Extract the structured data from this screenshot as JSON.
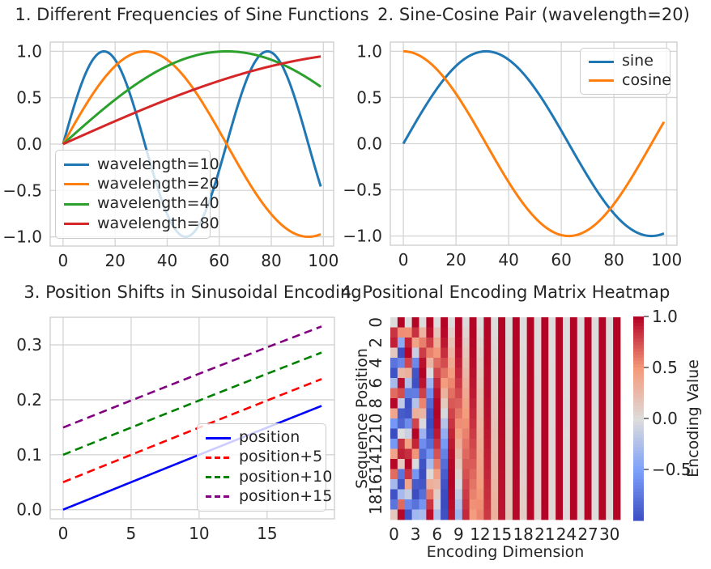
{
  "figure": {
    "background_color": "#ffffff",
    "text_color": "#262626",
    "grid_color": "#d4d4d4",
    "spine_color": "#cccccc"
  },
  "chart_data": [
    {
      "type": "line",
      "title": "1. Different Frequencies of Sine Functions",
      "x_range": [
        0,
        99
      ],
      "xlim": [
        -4.95,
        103.95
      ],
      "ylim": [
        -1.1,
        1.1
      ],
      "x_ticks": [
        0,
        20,
        40,
        60,
        80,
        100
      ],
      "x_tick_labels": [
        "0",
        "20",
        "40",
        "60",
        "80",
        "100"
      ],
      "y_ticks": [
        -1.0,
        -0.5,
        0.0,
        0.5,
        1.0
      ],
      "y_tick_labels": [
        "−1.0",
        "−0.5",
        "0.0",
        "0.5",
        "1.0"
      ],
      "grid": true,
      "legend_position": "lower left",
      "series": [
        {
          "label": "wavelength=10",
          "color": "#1f77b4",
          "linestyle": "solid",
          "formula": {
            "fn": "sin",
            "xshift": 0,
            "xscale": 10
          },
          "sample_x": [
            0,
            10,
            20,
            30,
            40,
            50,
            60,
            70,
            80,
            90,
            99
          ],
          "sample_y": [
            0.0,
            0.841,
            0.909,
            0.141,
            -0.757,
            -0.959,
            -0.279,
            0.657,
            0.989,
            0.412,
            -0.458
          ]
        },
        {
          "label": "wavelength=20",
          "color": "#ff7f0e",
          "linestyle": "solid",
          "formula": {
            "fn": "sin",
            "xshift": 0,
            "xscale": 20
          },
          "sample_x": [
            0,
            10,
            20,
            30,
            40,
            50,
            60,
            70,
            80,
            90,
            99
          ],
          "sample_y": [
            0.0,
            0.479,
            0.841,
            0.997,
            0.909,
            0.599,
            0.141,
            -0.351,
            -0.757,
            -0.978,
            -0.972
          ]
        },
        {
          "label": "wavelength=40",
          "color": "#2ca02c",
          "linestyle": "solid",
          "formula": {
            "fn": "sin",
            "xshift": 0,
            "xscale": 40
          },
          "sample_x": [
            0,
            10,
            20,
            30,
            40,
            50,
            60,
            70,
            80,
            90,
            99
          ],
          "sample_y": [
            0.0,
            0.247,
            0.479,
            0.682,
            0.841,
            0.949,
            0.997,
            0.984,
            0.909,
            0.778,
            0.618
          ]
        },
        {
          "label": "wavelength=80",
          "color": "#d62728",
          "linestyle": "solid",
          "formula": {
            "fn": "sin",
            "xshift": 0,
            "xscale": 80
          },
          "sample_x": [
            0,
            10,
            20,
            30,
            40,
            50,
            60,
            70,
            80,
            90,
            99
          ],
          "sample_y": [
            0.0,
            0.125,
            0.247,
            0.366,
            0.479,
            0.585,
            0.682,
            0.768,
            0.841,
            0.902,
            0.945
          ]
        }
      ]
    },
    {
      "type": "line",
      "title": "2. Sine-Cosine Pair (wavelength=20)",
      "x_range": [
        0,
        99
      ],
      "xlim": [
        -4.95,
        103.95
      ],
      "ylim": [
        -1.1,
        1.1
      ],
      "x_ticks": [
        0,
        20,
        40,
        60,
        80,
        100
      ],
      "x_tick_labels": [
        "0",
        "20",
        "40",
        "60",
        "80",
        "100"
      ],
      "y_ticks": [
        -1.0,
        -0.5,
        0.0,
        0.5,
        1.0
      ],
      "y_tick_labels": [
        "−1.0",
        "−0.5",
        "0.0",
        "0.5",
        "1.0"
      ],
      "grid": true,
      "legend_position": "upper right",
      "series": [
        {
          "label": "sine",
          "color": "#1f77b4",
          "linestyle": "solid",
          "formula": {
            "fn": "sin",
            "xshift": 0,
            "xscale": 20
          },
          "sample_x": [
            0,
            10,
            20,
            30,
            40,
            50,
            60,
            70,
            80,
            90,
            99
          ],
          "sample_y": [
            0.0,
            0.479,
            0.841,
            0.997,
            0.909,
            0.599,
            0.141,
            -0.351,
            -0.757,
            -0.978,
            -0.972
          ]
        },
        {
          "label": "cosine",
          "color": "#ff7f0e",
          "linestyle": "solid",
          "formula": {
            "fn": "cos",
            "xshift": 0,
            "xscale": 20
          },
          "sample_x": [
            0,
            10,
            20,
            30,
            40,
            50,
            60,
            70,
            80,
            90,
            99
          ],
          "sample_y": [
            1.0,
            0.878,
            0.54,
            0.071,
            -0.416,
            -0.801,
            -0.99,
            -0.936,
            -0.654,
            -0.211,
            0.236
          ]
        }
      ]
    },
    {
      "type": "line",
      "title": "3. Position Shifts in Sinusoidal Encoding",
      "x_range": [
        0,
        19
      ],
      "xlim": [
        -0.95,
        19.95
      ],
      "ylim": [
        -0.0167,
        0.3502
      ],
      "x_ticks": [
        0,
        5,
        10,
        15
      ],
      "x_tick_labels": [
        "0",
        "5",
        "10",
        "15"
      ],
      "y_ticks": [
        0.0,
        0.1,
        0.2,
        0.3
      ],
      "y_tick_labels": [
        "0.0",
        "0.1",
        "0.2",
        "0.3"
      ],
      "grid": true,
      "legend_position": "lower right",
      "series": [
        {
          "label": "position",
          "color": "#0000ff",
          "linestyle": "solid",
          "formula": {
            "fn": "sin",
            "xshift": 0,
            "xscale": 100
          },
          "sample_x": [
            0,
            5,
            10,
            15,
            19
          ],
          "sample_y": [
            0.0,
            0.05,
            0.0998,
            0.1494,
            0.1889
          ]
        },
        {
          "label": "position+5",
          "color": "#ff0000",
          "linestyle": "dashed",
          "formula": {
            "fn": "sin",
            "xshift": 5,
            "xscale": 100
          },
          "sample_x": [
            0,
            5,
            10,
            15,
            19
          ],
          "sample_y": [
            0.05,
            0.0998,
            0.1494,
            0.1987,
            0.2377
          ]
        },
        {
          "label": "position+10",
          "color": "#008000",
          "linestyle": "dashed",
          "formula": {
            "fn": "sin",
            "xshift": 10,
            "xscale": 100
          },
          "sample_x": [
            0,
            5,
            10,
            15,
            19
          ],
          "sample_y": [
            0.0998,
            0.1494,
            0.1987,
            0.2474,
            0.286
          ]
        },
        {
          "label": "position+15",
          "color": "#800080",
          "linestyle": "dashed",
          "formula": {
            "fn": "sin",
            "xshift": 15,
            "xscale": 100
          },
          "sample_x": [
            0,
            5,
            10,
            15,
            19
          ],
          "sample_y": [
            0.1494,
            0.1987,
            0.2474,
            0.2955,
            0.3335
          ]
        }
      ]
    },
    {
      "type": "heatmap",
      "title": "4. Positional Encoding Matrix Heatmap",
      "x_label": "Encoding Dimension",
      "y_label": "Sequence Position",
      "n_rows": 20,
      "n_cols": 32,
      "x_ticks": [
        0,
        3,
        6,
        9,
        12,
        15,
        18,
        21,
        24,
        27,
        30
      ],
      "x_tick_labels": [
        "0",
        "3",
        "6",
        "9",
        "12",
        "15",
        "18",
        "21",
        "24",
        "27",
        "30"
      ],
      "y_ticks": [
        0,
        2,
        4,
        6,
        8,
        10,
        12,
        14,
        16,
        18
      ],
      "y_tick_labels": [
        "0",
        "2",
        "4",
        "6",
        "8",
        "10",
        "12",
        "14",
        "16",
        "18"
      ],
      "y_tick_rotation": 90,
      "colormap": "coolwarm",
      "vmin": -1.0,
      "vmax": 1.0,
      "matrix_formula": {
        "name": "sinusoidal_positional_encoding",
        "base": 10000,
        "d_model": 32,
        "n_positions": 20,
        "even_dims": "PE[pos,2i] = sin(pos / base^(2i/d_model))",
        "odd_dims": "PE[pos,2i+1] = cos(pos / base^(2i/d_model))"
      },
      "colorbar": {
        "label": "Encoding Value",
        "tick_values": [
          1.0,
          0.5,
          0.0,
          -0.5
        ],
        "tick_labels": [
          "1.0",
          "0.5",
          "0.0",
          "−0.5"
        ]
      }
    }
  ]
}
